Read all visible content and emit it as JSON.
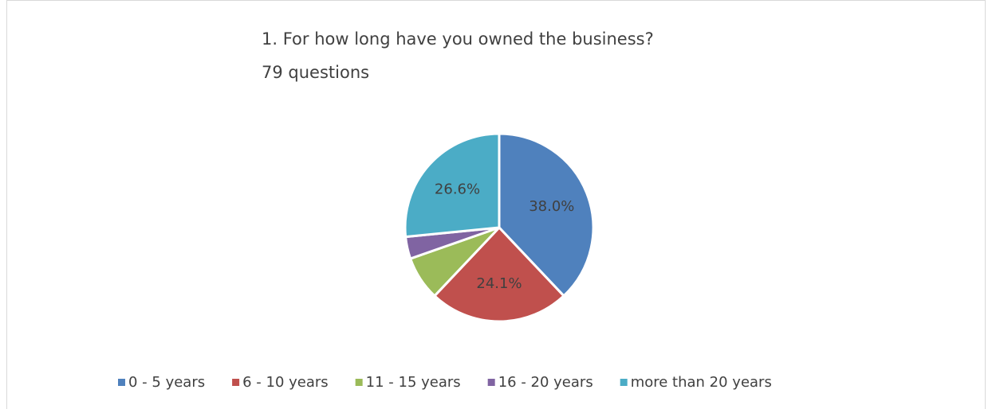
{
  "chart_data": {
    "type": "pie",
    "title": "1. For how long have you owned the business?",
    "subtitle": "79 questions",
    "categories": [
      "0 - 5 years",
      "6 - 10 years",
      "11 - 15 years",
      "16 - 20 years",
      "more than 20 years"
    ],
    "values": [
      38.0,
      24.1,
      7.6,
      3.8,
      26.6
    ],
    "value_labels": [
      "38.0%",
      "24.1%",
      null,
      null,
      "26.6%"
    ],
    "colors": [
      "#4F81BD",
      "#C0504D",
      "#9BBB59",
      "#8064A2",
      "#4BACC6"
    ],
    "legend": "bottom"
  }
}
